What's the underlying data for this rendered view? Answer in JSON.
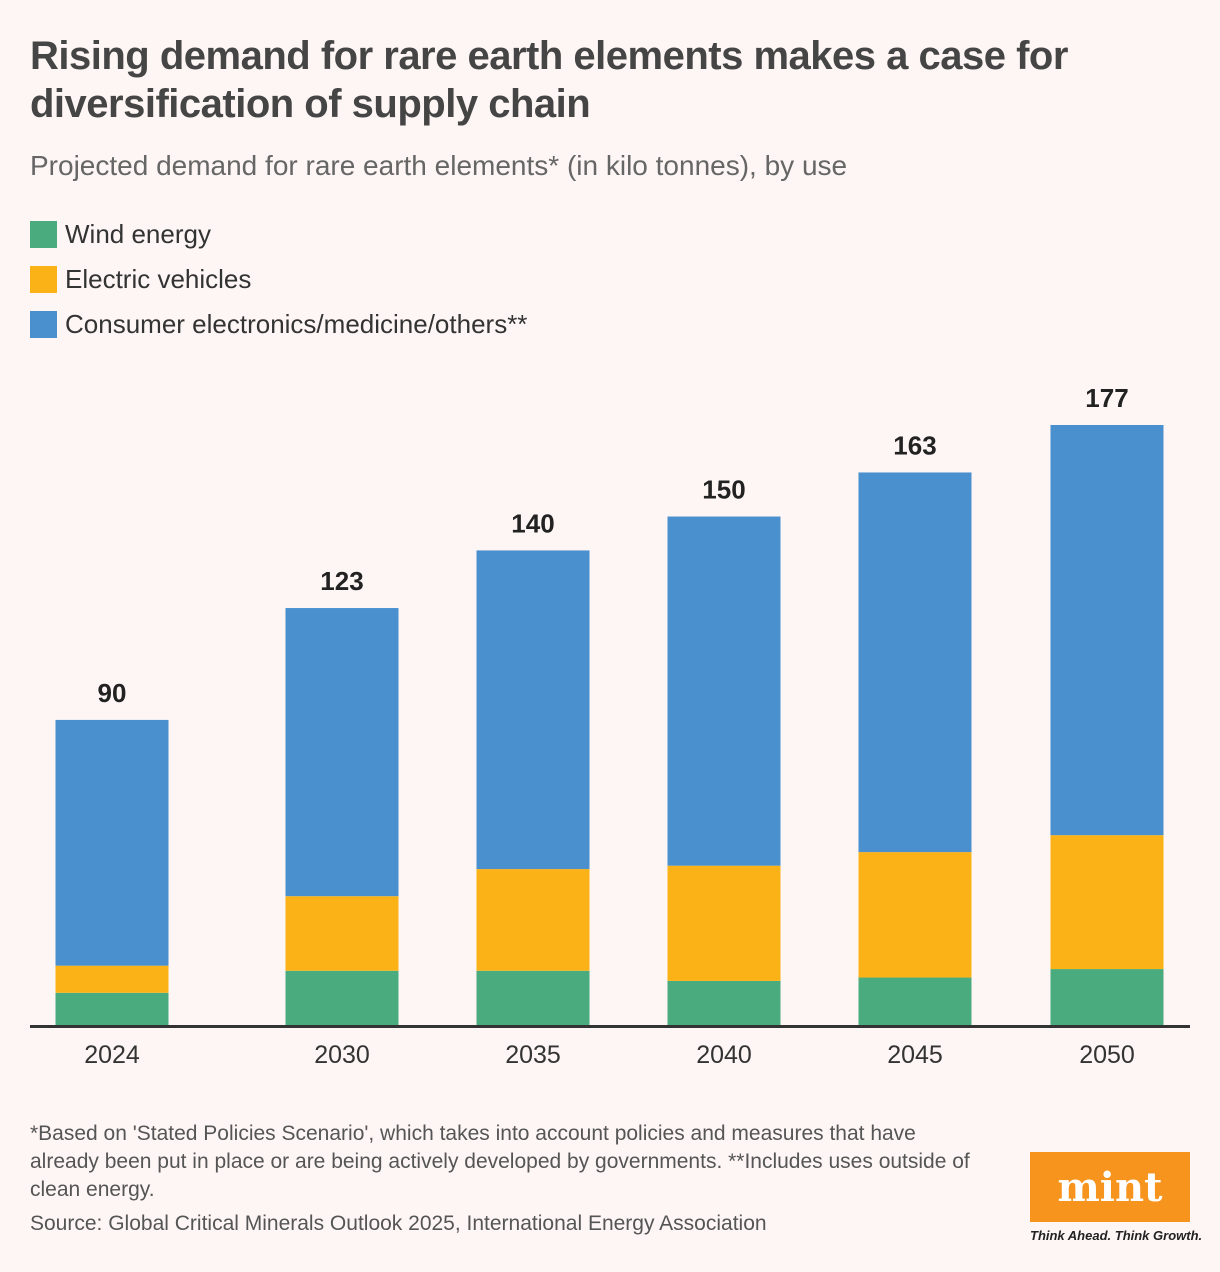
{
  "title": "Rising demand for rare earth elements makes a case for diversification of supply chain",
  "subtitle": "Projected demand for rare earth elements* (in kilo tonnes), by use",
  "legend": [
    {
      "label": "Wind energy",
      "color": "#4aab7e"
    },
    {
      "label": "Electric vehicles",
      "color": "#fbb217"
    },
    {
      "label": "Consumer electronics/medicine/others**",
      "color": "#4a90ce"
    }
  ],
  "chart_data": {
    "type": "bar",
    "stacked": true,
    "categories": [
      "2024",
      "2030",
      "2035",
      "2040",
      "2045",
      "2050"
    ],
    "series": [
      {
        "name": "Wind energy",
        "color": "#4aab7e",
        "values": [
          9.5,
          16,
          16,
          13,
          14,
          16.5
        ]
      },
      {
        "name": "Electric vehicles",
        "color": "#fbb217",
        "values": [
          8,
          22,
          30,
          34,
          37,
          39.5
        ]
      },
      {
        "name": "Consumer electronics/medicine/others**",
        "color": "#4a90ce",
        "values": [
          72.5,
          85,
          94,
          103,
          112,
          121
        ]
      }
    ],
    "totals": [
      "90",
      "123",
      "140",
      "150",
      "163",
      "177"
    ],
    "ylim": [
      0,
      177
    ],
    "grid": false,
    "legend": "top-left"
  },
  "footnote": "*Based on 'Stated Policies Scenario', which takes into account policies and measures that have already been put in place or are being actively developed by governments. **Includes uses outside of clean energy.",
  "source": "Source: Global Critical Minerals Outlook 2025, International Energy Association",
  "logo": "mint",
  "tagline": "Think Ahead. Think Growth."
}
